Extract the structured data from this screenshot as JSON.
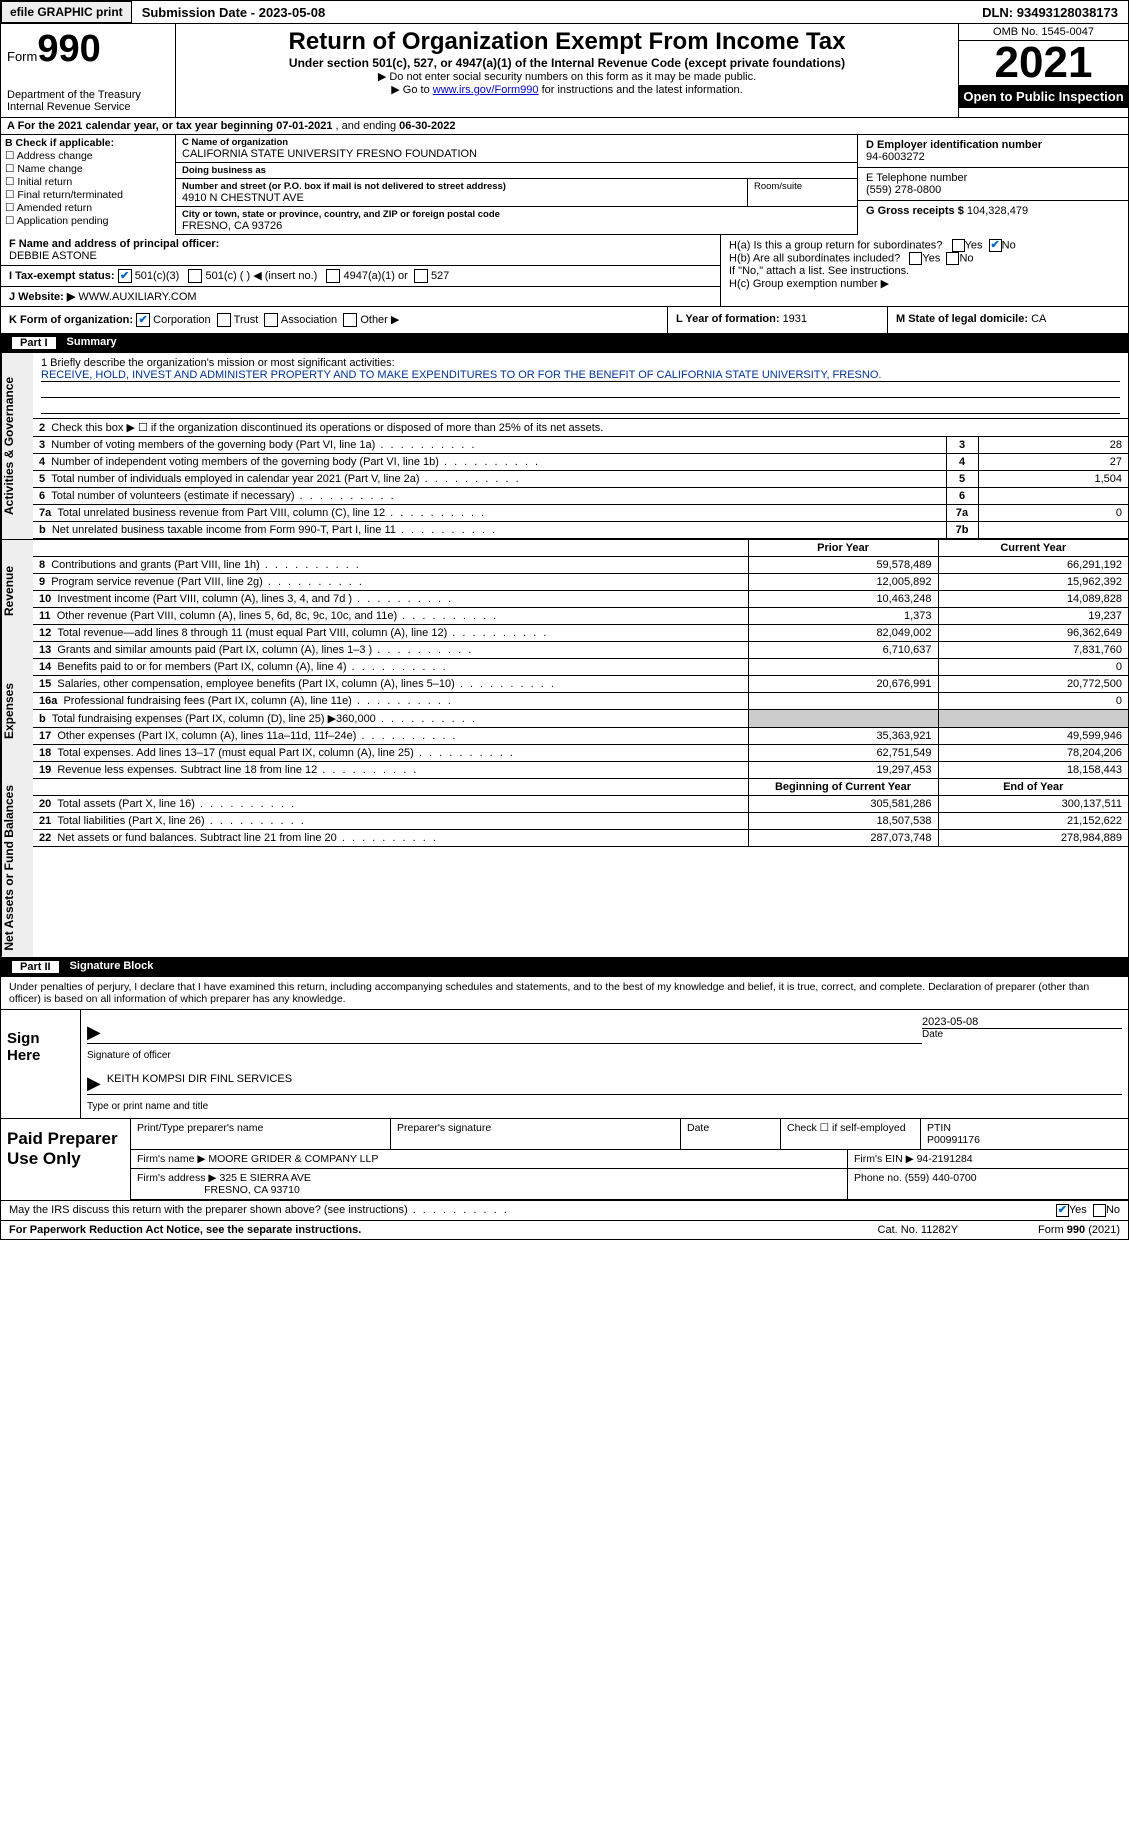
{
  "topbar": {
    "efile": "efile GRAPHIC print",
    "submission_label": "Submission Date - ",
    "submission_date": "2023-05-08",
    "dln_label": "DLN: ",
    "dln": "93493128038173"
  },
  "header": {
    "form_word": "Form",
    "form_num": "990",
    "dept": "Department of the Treasury",
    "irs": "Internal Revenue Service",
    "title": "Return of Organization Exempt From Income Tax",
    "subtitle": "Under section 501(c), 527, or 4947(a)(1) of the Internal Revenue Code (except private foundations)",
    "note1": "▶ Do not enter social security numbers on this form as it may be made public.",
    "note2_pre": "▶ Go to ",
    "note2_link": "www.irs.gov/Form990",
    "note2_post": " for instructions and the latest information.",
    "omb": "OMB No. 1545-0047",
    "year": "2021",
    "otp": "Open to Public Inspection"
  },
  "row_a": {
    "text_pre": "A For the 2021 calendar year, or tax year beginning ",
    "begin": "07-01-2021",
    "mid": " , and ending ",
    "end": "06-30-2022"
  },
  "col_b": {
    "label": "B Check if applicable:",
    "items": [
      "Address change",
      "Name change",
      "Initial return",
      "Final return/terminated",
      "Amended return",
      "Application pending"
    ]
  },
  "col_c": {
    "name_label": "C Name of organization",
    "name": "CALIFORNIA STATE UNIVERSITY FRESNO FOUNDATION",
    "dba_label": "Doing business as",
    "dba": "",
    "street_label": "Number and street (or P.O. box if mail is not delivered to street address)",
    "street": "4910 N CHESTNUT AVE",
    "room_label": "Room/suite",
    "city_label": "City or town, state or province, country, and ZIP or foreign postal code",
    "city": "FRESNO, CA  93726"
  },
  "col_d": {
    "ein_label": "D Employer identification number",
    "ein": "94-6003272",
    "phone_label": "E Telephone number",
    "phone": "(559) 278-0800",
    "gross_label": "G Gross receipts $ ",
    "gross": "104,328,479"
  },
  "row_f": {
    "label": "F  Name and address of principal officer:",
    "name": "DEBBIE ASTONE"
  },
  "row_h": {
    "ha": "H(a)  Is this a group return for subordinates?",
    "hb": "H(b)  Are all subordinates included?",
    "hb_note": "If \"No,\" attach a list. See instructions.",
    "hc": "H(c)  Group exemption number ▶",
    "yes": "Yes",
    "no": "No"
  },
  "row_i": {
    "label": "I   Tax-exempt status:",
    "opt1": "501(c)(3)",
    "opt2": "501(c) (  ) ◀ (insert no.)",
    "opt3": "4947(a)(1) or",
    "opt4": "527"
  },
  "row_j": {
    "label": "J   Website: ▶ ",
    "val": "WWW.AUXILIARY.COM"
  },
  "row_k": {
    "label": "K Form of organization:",
    "opts": [
      "Corporation",
      "Trust",
      "Association",
      "Other ▶"
    ]
  },
  "row_l": {
    "label": "L Year of formation: ",
    "val": "1931"
  },
  "row_m": {
    "label": "M State of legal domicile: ",
    "val": "CA"
  },
  "parts": {
    "p1": "Part I",
    "p1_title": "Summary",
    "p2": "Part II",
    "p2_title": "Signature Block"
  },
  "vtabs": {
    "act": "Activities & Governance",
    "rev": "Revenue",
    "exp": "Expenses",
    "net": "Net Assets or Fund Balances"
  },
  "mission": {
    "q": "1   Briefly describe the organization's mission or most significant activities:",
    "text": "RECEIVE, HOLD, INVEST AND ADMINISTER PROPERTY AND TO MAKE EXPENDITURES TO OR FOR THE BENEFIT OF CALIFORNIA STATE UNIVERSITY, FRESNO."
  },
  "lines_gov": [
    {
      "n": "2",
      "desc": "Check this box ▶ ☐ if the organization discontinued its operations or disposed of more than 25% of its net assets.",
      "num": "",
      "val": ""
    },
    {
      "n": "3",
      "desc": "Number of voting members of the governing body (Part VI, line 1a)",
      "num": "3",
      "val": "28"
    },
    {
      "n": "4",
      "desc": "Number of independent voting members of the governing body (Part VI, line 1b)",
      "num": "4",
      "val": "27"
    },
    {
      "n": "5",
      "desc": "Total number of individuals employed in calendar year 2021 (Part V, line 2a)",
      "num": "5",
      "val": "1,504"
    },
    {
      "n": "6",
      "desc": "Total number of volunteers (estimate if necessary)",
      "num": "6",
      "val": ""
    },
    {
      "n": "7a",
      "desc": "Total unrelated business revenue from Part VIII, column (C), line 12",
      "num": "7a",
      "val": "0"
    },
    {
      "n": "b",
      "desc": "Net unrelated business taxable income from Form 990-T, Part I, line 11",
      "num": "7b",
      "val": ""
    }
  ],
  "col_hdrs": {
    "py": "Prior Year",
    "cy": "Current Year",
    "boy": "Beginning of Current Year",
    "eoy": "End of Year"
  },
  "lines_rev": [
    {
      "n": "8",
      "desc": "Contributions and grants (Part VIII, line 1h)",
      "py": "59,578,489",
      "cy": "66,291,192"
    },
    {
      "n": "9",
      "desc": "Program service revenue (Part VIII, line 2g)",
      "py": "12,005,892",
      "cy": "15,962,392"
    },
    {
      "n": "10",
      "desc": "Investment income (Part VIII, column (A), lines 3, 4, and 7d )",
      "py": "10,463,248",
      "cy": "14,089,828"
    },
    {
      "n": "11",
      "desc": "Other revenue (Part VIII, column (A), lines 5, 6d, 8c, 9c, 10c, and 11e)",
      "py": "1,373",
      "cy": "19,237"
    },
    {
      "n": "12",
      "desc": "Total revenue—add lines 8 through 11 (must equal Part VIII, column (A), line 12)",
      "py": "82,049,002",
      "cy": "96,362,649"
    }
  ],
  "lines_exp": [
    {
      "n": "13",
      "desc": "Grants and similar amounts paid (Part IX, column (A), lines 1–3 )",
      "py": "6,710,637",
      "cy": "7,831,760"
    },
    {
      "n": "14",
      "desc": "Benefits paid to or for members (Part IX, column (A), line 4)",
      "py": "",
      "cy": "0"
    },
    {
      "n": "15",
      "desc": "Salaries, other compensation, employee benefits (Part IX, column (A), lines 5–10)",
      "py": "20,676,991",
      "cy": "20,772,500"
    },
    {
      "n": "16a",
      "desc": "Professional fundraising fees (Part IX, column (A), line 11e)",
      "py": "",
      "cy": "0"
    },
    {
      "n": "b",
      "desc": "Total fundraising expenses (Part IX, column (D), line 25) ▶360,000",
      "py": "shade",
      "cy": "shade"
    },
    {
      "n": "17",
      "desc": "Other expenses (Part IX, column (A), lines 11a–11d, 11f–24e)",
      "py": "35,363,921",
      "cy": "49,599,946"
    },
    {
      "n": "18",
      "desc": "Total expenses. Add lines 13–17 (must equal Part IX, column (A), line 25)",
      "py": "62,751,549",
      "cy": "78,204,206"
    },
    {
      "n": "19",
      "desc": "Revenue less expenses. Subtract line 18 from line 12",
      "py": "19,297,453",
      "cy": "18,158,443"
    }
  ],
  "lines_net": [
    {
      "n": "20",
      "desc": "Total assets (Part X, line 16)",
      "py": "305,581,286",
      "cy": "300,137,511"
    },
    {
      "n": "21",
      "desc": "Total liabilities (Part X, line 26)",
      "py": "18,507,538",
      "cy": "21,152,622"
    },
    {
      "n": "22",
      "desc": "Net assets or fund balances. Subtract line 21 from line 20",
      "py": "287,073,748",
      "cy": "278,984,889"
    }
  ],
  "sig": {
    "intro": "Under penalties of perjury, I declare that I have examined this return, including accompanying schedules and statements, and to the best of my knowledge and belief, it is true, correct, and complete. Declaration of preparer (other than officer) is based on all information of which preparer has any knowledge.",
    "sign_here": "Sign Here",
    "sig_officer": "Signature of officer",
    "date_label": "Date",
    "sig_date": "2023-05-08",
    "name_title": "KEITH KOMPSI  DIR FINL SERVICES",
    "type_name": "Type or print name and title"
  },
  "prep": {
    "label": "Paid Preparer Use Only",
    "print_name_lbl": "Print/Type preparer's name",
    "print_name": "",
    "prep_sig_lbl": "Preparer's signature",
    "date_lbl": "Date",
    "check_lbl": "Check ☐ if self-employed",
    "ptin_lbl": "PTIN",
    "ptin": "P00991176",
    "firm_name_lbl": "Firm's name     ▶ ",
    "firm_name": "MOORE GRIDER & COMPANY LLP",
    "firm_ein_lbl": "Firm's EIN ▶ ",
    "firm_ein": "94-2191284",
    "firm_addr_lbl": "Firm's address ▶ ",
    "firm_addr1": "325 E SIERRA AVE",
    "firm_addr2": "FRESNO, CA  93710",
    "phone_lbl": "Phone no. ",
    "phone": "(559) 440-0700"
  },
  "discuss": {
    "q": "May the IRS discuss this return with the preparer shown above? (see instructions)",
    "yes": "Yes",
    "no": "No"
  },
  "footer": {
    "left": "For Paperwork Reduction Act Notice, see the separate instructions.",
    "cat": "Cat. No. 11282Y",
    "right": "Form 990 (2021)"
  }
}
